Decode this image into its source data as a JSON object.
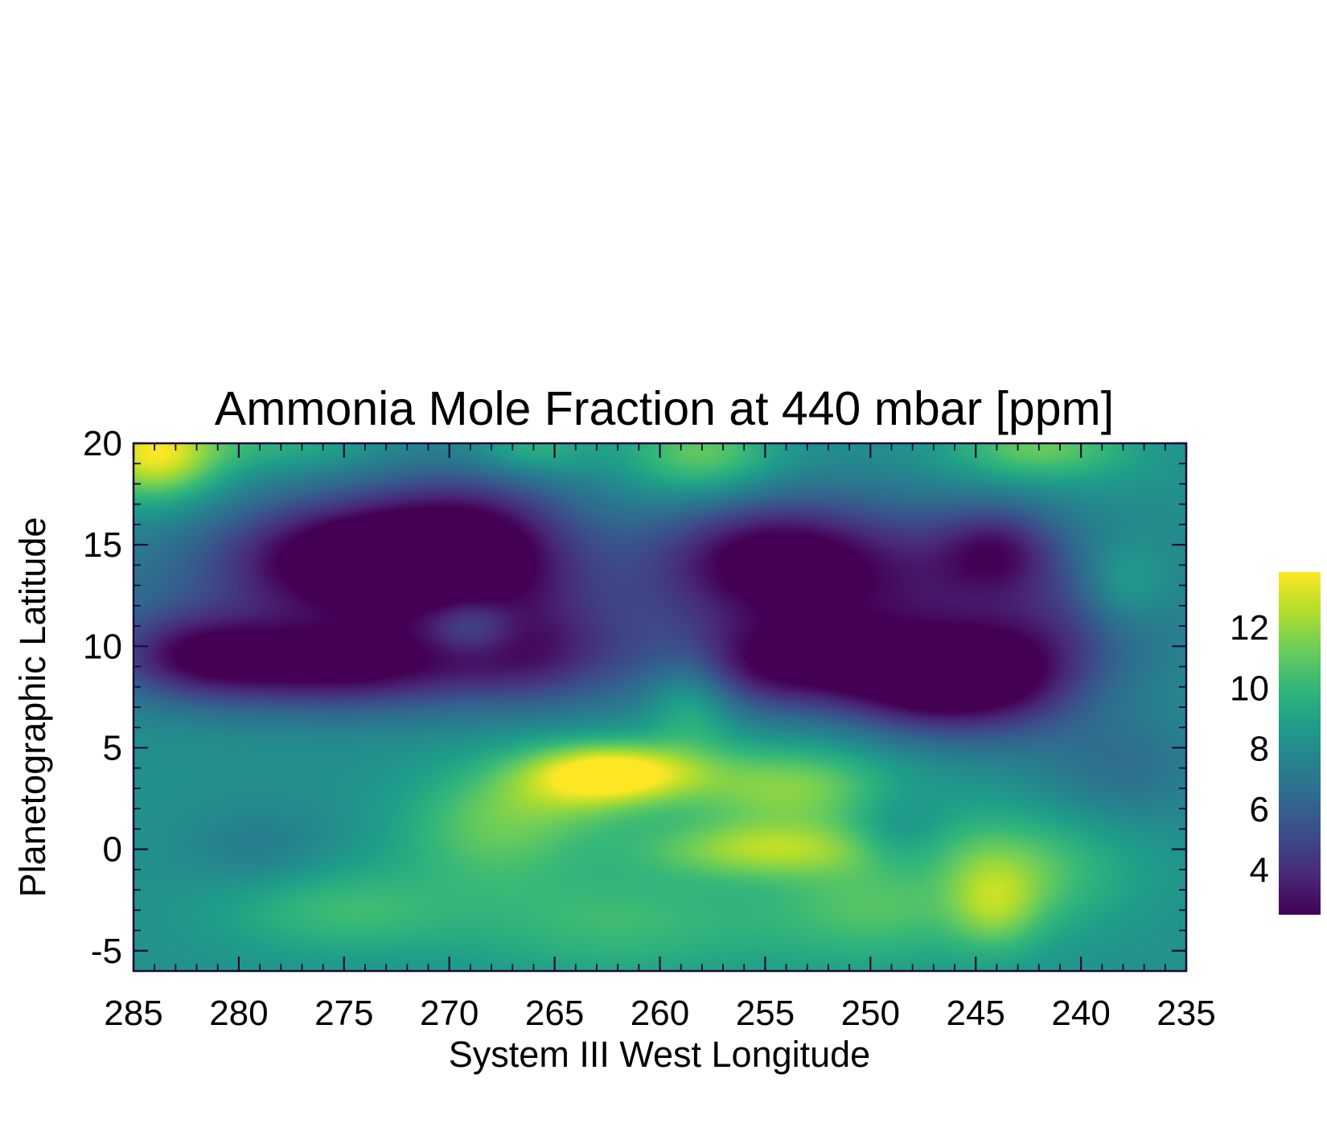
{
  "chart_data": {
    "type": "heatmap",
    "title": "Ammonia Mole Fraction at 440 mbar [ppm]",
    "xlabel": "System III West Longitude",
    "ylabel": "Planetographic Latitude",
    "xlim": [
      285,
      235
    ],
    "ylim": [
      -6,
      20
    ],
    "x_ticks": [
      285,
      280,
      275,
      270,
      265,
      260,
      255,
      250,
      245,
      240,
      235
    ],
    "y_ticks": [
      -5,
      0,
      5,
      10,
      15,
      20
    ],
    "colorbar": {
      "colormap": "viridis",
      "range": [
        2.5,
        13.8
      ],
      "ticks": [
        4,
        6,
        8,
        10,
        12
      ]
    },
    "colormap_stops": [
      "#440154",
      "#482878",
      "#3e4989",
      "#31688e",
      "#26828e",
      "#1f9e89",
      "#35b779",
      "#6ece58",
      "#b5de2b",
      "#fde725"
    ],
    "background_level": 8.2,
    "features": [
      {
        "lon": 284,
        "lat": 19.5,
        "lon_width": 2.2,
        "lat_width": 1.6,
        "amp": 5.5
      },
      {
        "lon": 258,
        "lat": 19.5,
        "lon_width": 2.5,
        "lat_width": 1.5,
        "amp": 3.0
      },
      {
        "lon": 266,
        "lat": 19.8,
        "lon_width": 2.0,
        "lat_width": 1.0,
        "amp": 2.0
      },
      {
        "lon": 242,
        "lat": 19.8,
        "lon_width": 3.0,
        "lat_width": 1.2,
        "amp": 3.0
      },
      {
        "lon": 278,
        "lat": 20.0,
        "lon_width": 3.0,
        "lat_width": 1.0,
        "amp": 1.5
      },
      {
        "lon": 275,
        "lat": 14.5,
        "lon_width": 4.0,
        "lat_width": 2.0,
        "amp": -5.0
      },
      {
        "lon": 269,
        "lat": 15.0,
        "lon_width": 3.5,
        "lat_width": 2.5,
        "amp": -5.0
      },
      {
        "lon": 255,
        "lat": 14.5,
        "lon_width": 3.5,
        "lat_width": 2.0,
        "amp": -4.0
      },
      {
        "lon": 244,
        "lat": 14.8,
        "lon_width": 2.0,
        "lat_width": 1.5,
        "amp": -3.0
      },
      {
        "lon": 249,
        "lat": 14.0,
        "lon_width": 5.0,
        "lat_width": 2.5,
        "amp": -2.0
      },
      {
        "lon": 273,
        "lat": 12.5,
        "lon_width": 10.0,
        "lat_width": 3.0,
        "amp": -2.5
      },
      {
        "lon": 250,
        "lat": 12.0,
        "lon_width": 8.0,
        "lat_width": 3.0,
        "amp": -2.5
      },
      {
        "lon": 282,
        "lat": 9.5,
        "lon_width": 3.0,
        "lat_width": 1.5,
        "amp": -4.0
      },
      {
        "lon": 275,
        "lat": 9.0,
        "lon_width": 4.5,
        "lat_width": 1.5,
        "amp": -5.0
      },
      {
        "lon": 266,
        "lat": 9.5,
        "lon_width": 3.0,
        "lat_width": 1.8,
        "amp": -3.0
      },
      {
        "lon": 254,
        "lat": 9.0,
        "lon_width": 4.0,
        "lat_width": 1.6,
        "amp": -4.5
      },
      {
        "lon": 247,
        "lat": 8.2,
        "lon_width": 3.0,
        "lat_width": 1.8,
        "amp": -5.5
      },
      {
        "lon": 243,
        "lat": 8.5,
        "lon_width": 2.5,
        "lat_width": 2.0,
        "amp": -3.0
      },
      {
        "lon": 269,
        "lat": 11.0,
        "lon_width": 1.5,
        "lat_width": 1.0,
        "amp": 2.5
      },
      {
        "lon": 258.5,
        "lat": 7.5,
        "lon_width": 1.5,
        "lat_width": 1.8,
        "amp": 2.5
      },
      {
        "lon": 238,
        "lat": 13.0,
        "lon_width": 1.5,
        "lat_width": 1.5,
        "amp": 2.0
      },
      {
        "lon": 262,
        "lat": 3.8,
        "lon_width": 2.8,
        "lat_width": 1.0,
        "amp": 5.0
      },
      {
        "lon": 264,
        "lat": 3.0,
        "lon_width": 3.0,
        "lat_width": 1.5,
        "amp": 2.5
      },
      {
        "lon": 254,
        "lat": 3.0,
        "lon_width": 3.5,
        "lat_width": 1.5,
        "amp": 3.5
      },
      {
        "lon": 255,
        "lat": 0.0,
        "lon_width": 4.0,
        "lat_width": 1.0,
        "amp": 3.5
      },
      {
        "lon": 268,
        "lat": 1.0,
        "lon_width": 3.0,
        "lat_width": 2.0,
        "amp": 2.5
      },
      {
        "lon": 244,
        "lat": -1.0,
        "lon_width": 4.0,
        "lat_width": 2.0,
        "amp": 3.0
      },
      {
        "lon": 244,
        "lat": -3.0,
        "lon_width": 1.5,
        "lat_width": 1.5,
        "amp": 2.0
      },
      {
        "lon": 275,
        "lat": -3.0,
        "lon_width": 4.0,
        "lat_width": 1.5,
        "amp": 2.0
      },
      {
        "lon": 262,
        "lat": -3.5,
        "lon_width": 5.0,
        "lat_width": 2.0,
        "amp": 2.0
      },
      {
        "lon": 250,
        "lat": -3.0,
        "lon_width": 4.0,
        "lat_width": 2.0,
        "amp": 2.0
      },
      {
        "lon": 279,
        "lat": 0.0,
        "lon_width": 2.5,
        "lat_width": 1.5,
        "amp": -1.0
      },
      {
        "lon": 249,
        "lat": 0.5,
        "lon_width": 1.5,
        "lat_width": 1.5,
        "amp": -1.5
      },
      {
        "lon": 247,
        "lat": -1.0,
        "lon_width": 1.5,
        "lat_width": 2.0,
        "amp": -1.0
      },
      {
        "lon": 238,
        "lat": 4.0,
        "lon_width": 3.0,
        "lat_width": 2.0,
        "amp": -1.5
      },
      {
        "lon": 240,
        "lat": 11.0,
        "lon_width": 3.0,
        "lat_width": 2.5,
        "amp": -1.5
      }
    ]
  }
}
